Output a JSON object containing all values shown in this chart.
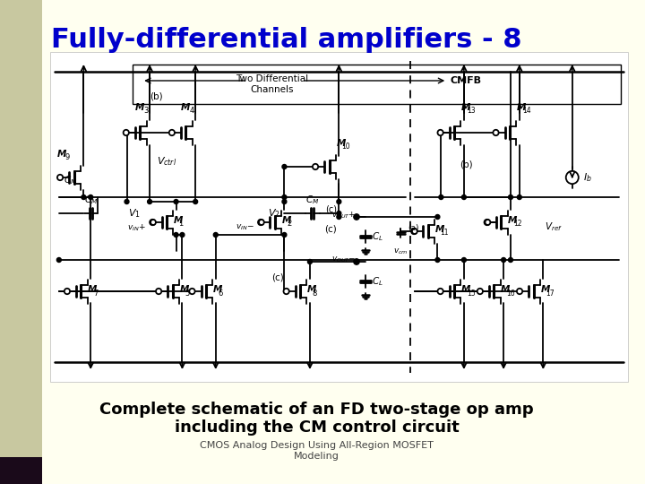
{
  "title": "Fully-differential amplifiers - 8",
  "title_color": "#0000cc",
  "title_fontsize": 22,
  "title_bold": true,
  "bg_main": "#fffff0",
  "bg_left": "#c8c8a0",
  "bg_dark_bar": "#1a0a1a",
  "caption_line1": "Complete schematic of an FD two-stage op amp",
  "caption_line2": "including the CM control circuit",
  "caption_fontsize": 13,
  "caption_bold": true,
  "caption_color": "#000000",
  "sub1": "CMOS Analog Design Using All-Region MOSFET",
  "sub2": "Modeling",
  "sub_fontsize": 8,
  "sub_color": "#444444"
}
